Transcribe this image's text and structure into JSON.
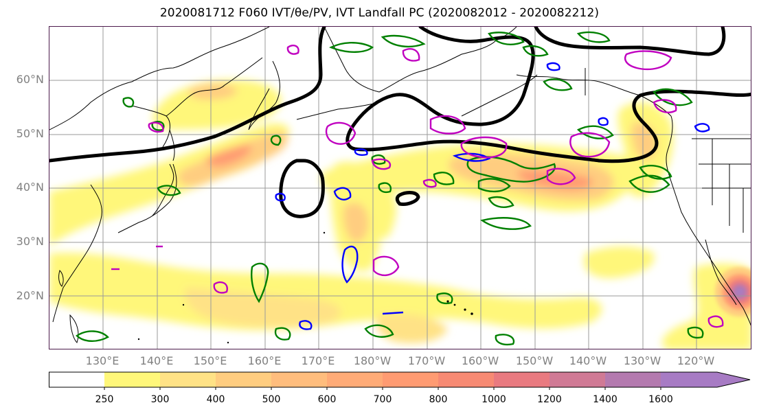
{
  "title": "2020081712 F060 IVT/θe/PV, IVT Landfall PC (2020082012 - 2020082212)",
  "map": {
    "lat_labels": [
      "60°N",
      "50°N",
      "40°N",
      "30°N",
      "20°N"
    ],
    "lon_labels": [
      "130°E",
      "140°E",
      "150°E",
      "160°E",
      "170°E",
      "180°W",
      "170°W",
      "160°W",
      "150°W",
      "140°W",
      "130°W",
      "120°W"
    ],
    "lon_range": [
      "120°E",
      "110°W"
    ],
    "lat_range": [
      "10°N",
      "70°N"
    ],
    "gridlines": true
  },
  "colorbar": {
    "ticks": [
      "250",
      "300",
      "400",
      "500",
      "600",
      "700",
      "800",
      "1000",
      "1200",
      "1400",
      "1600"
    ],
    "colors": [
      "#ffffff",
      "#fff77a",
      "#ffe286",
      "#ffcd80",
      "#ffbd7d",
      "#ffab77",
      "#ff9b72",
      "#f78a73",
      "#e97a80",
      "#d07a95",
      "#b47aaf",
      "#a77bc4"
    ],
    "extend": "max"
  },
  "legend_colors": {
    "contour_theta": "#000000",
    "contour_pv_green": "#008000",
    "contour_pv_blue": "#0000ff",
    "contour_magenta": "#c000c0"
  }
}
